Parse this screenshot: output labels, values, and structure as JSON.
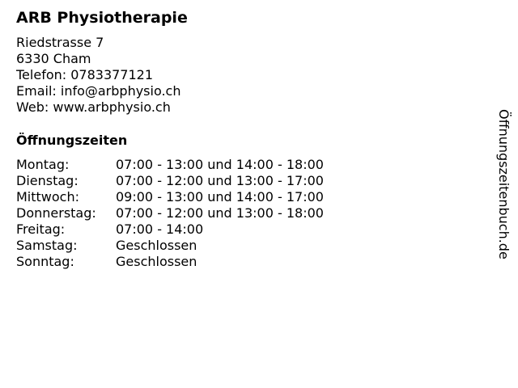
{
  "business": {
    "name": "ARB Physiotherapie",
    "street": "Riedstrasse 7",
    "city": "6330 Cham",
    "phone": "Telefon: 0783377121",
    "email": "Email: info@arbphysio.ch",
    "web": "Web: www.arbphysio.ch"
  },
  "hours": {
    "heading": "Öffnungszeiten",
    "rows": [
      {
        "day": "Montag:",
        "time": "07:00 - 13:00 und 14:00 - 18:00"
      },
      {
        "day": "Dienstag:",
        "time": "07:00 - 12:00 und 13:00 - 17:00"
      },
      {
        "day": "Mittwoch:",
        "time": "09:00 - 13:00 und 14:00 - 17:00"
      },
      {
        "day": "Donnerstag:",
        "time": "07:00 - 12:00 und 13:00 - 18:00"
      },
      {
        "day": "Freitag:",
        "time": "07:00 - 14:00"
      },
      {
        "day": "Samstag:",
        "time": "Geschlossen"
      },
      {
        "day": "Sonntag:",
        "time": "Geschlossen"
      }
    ]
  },
  "watermark": "Öffnungszeitenbuch.de"
}
